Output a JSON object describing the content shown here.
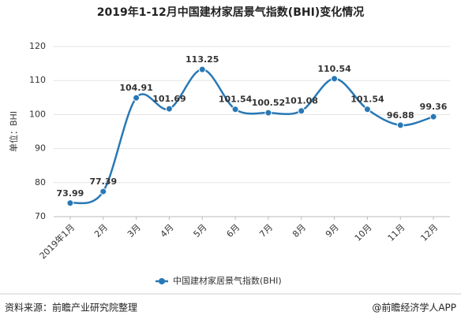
{
  "chart_data": {
    "type": "line",
    "title": "2019年1-12月中国建材家居景气指数(BHI)变化情况",
    "y_label": "单位：BHI",
    "categories": [
      "2019年1月",
      "2月",
      "3月",
      "4月",
      "5月",
      "6月",
      "7月",
      "8月",
      "9月",
      "10月",
      "11月",
      "12月"
    ],
    "series": [
      {
        "name": "中国建材家居景气指数(BHI)",
        "color": "#2878b5",
        "values": [
          73.99,
          77.39,
          104.91,
          101.69,
          113.25,
          101.54,
          100.52,
          101.08,
          110.54,
          101.54,
          96.88,
          99.36
        ]
      }
    ],
    "ylim": [
      70,
      120
    ],
    "yticks": [
      70,
      80,
      90,
      100,
      110,
      120
    ],
    "grid": true,
    "legend": "bottom"
  },
  "footer": {
    "source": "资料来源：前瞻产业研究院整理",
    "credit": "@前瞻经济学人APP"
  }
}
